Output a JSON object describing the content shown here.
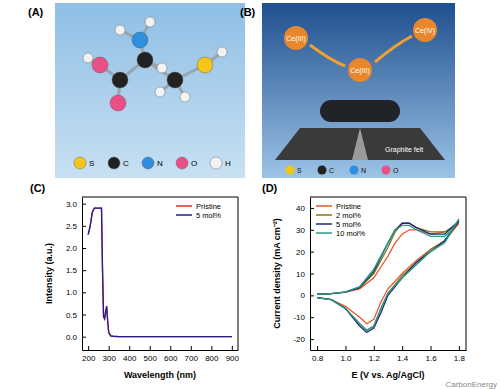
{
  "panels": {
    "A": {
      "label": "(A)",
      "legend": [
        "S",
        "C",
        "N",
        "O",
        "H"
      ]
    },
    "B": {
      "label": "(B)",
      "ions": [
        "Ce(III)",
        "Ce(IV)",
        "Ce(III)"
      ],
      "substrate": "Graphite felt",
      "legend": [
        "S",
        "C",
        "N",
        "O"
      ]
    },
    "C": {
      "label": "(C)"
    },
    "D": {
      "label": "(D)"
    }
  },
  "watermark": "CarbonEnergy",
  "chart_data": [
    {
      "type": "line",
      "x_label": "Wavelength (nm)",
      "y_label": "Intensity (a.u.)",
      "x": [
        200,
        210,
        220,
        230,
        240,
        250,
        260,
        265,
        270,
        275,
        280,
        285,
        290,
        295,
        300,
        310,
        320,
        350,
        400,
        500,
        600,
        700,
        800,
        900
      ],
      "series": [
        {
          "name": "Pristine",
          "color": "#e8281e",
          "values": [
            2.3,
            2.5,
            2.8,
            2.9,
            2.9,
            2.9,
            2.9,
            2.9,
            1.5,
            0.45,
            0.4,
            0.55,
            0.68,
            0.35,
            0.1,
            0.02,
            0.01,
            0,
            0,
            0,
            0,
            0,
            0,
            0
          ]
        },
        {
          "name": "5 mol%",
          "color": "#1f1f8f",
          "values": [
            2.3,
            2.5,
            2.8,
            2.9,
            2.9,
            2.9,
            2.9,
            2.9,
            1.5,
            0.46,
            0.41,
            0.56,
            0.69,
            0.36,
            0.1,
            0.02,
            0.01,
            0,
            0,
            0,
            0,
            0,
            0,
            0
          ]
        }
      ],
      "xlim": [
        170,
        930
      ],
      "xticks": [
        200,
        300,
        400,
        500,
        600,
        700,
        800,
        900
      ],
      "ylim": [
        -0.3,
        3.15
      ],
      "yticks": [
        {
          "value": 0,
          "label": "0.0"
        },
        0.5,
        {
          "value": 1,
          "label": "1.0"
        },
        1.5,
        {
          "value": 2,
          "label": "2.0"
        },
        2.5,
        {
          "value": 3,
          "label": "3.0"
        }
      ],
      "legend": "upper right"
    },
    {
      "type": "line",
      "x_label": "E (V vs. Ag/AgCl)",
      "y_label": "Current density (mA cm⁻²)",
      "x": [
        0.8,
        0.9,
        1.0,
        1.1,
        1.2,
        1.3,
        1.35,
        1.4,
        1.45,
        1.5,
        1.6,
        1.7,
        1.75,
        1.8,
        1.7,
        1.6,
        1.5,
        1.4,
        1.3,
        1.25,
        1.2,
        1.15,
        1.1,
        1.0,
        0.9,
        0.8
      ],
      "series": [
        {
          "name": "Pristine",
          "color": "#e8552a",
          "values": [
            0.5,
            0.8,
            1.5,
            3,
            8,
            18,
            24,
            28,
            30,
            30,
            28,
            29,
            31,
            33,
            25,
            21,
            16,
            10,
            3,
            -3,
            -11,
            -13,
            -10,
            -5,
            -2,
            -1
          ]
        },
        {
          "name": "2 mol%",
          "color": "#7a7a1a",
          "values": [
            0.5,
            0.8,
            1.5,
            3.5,
            10,
            22,
            29,
            33,
            33,
            31,
            29,
            29,
            31,
            34,
            25,
            21,
            15,
            9,
            1,
            -6,
            -14,
            -16,
            -13,
            -6,
            -2,
            -1
          ]
        },
        {
          "name": "5 mol%",
          "color": "#1c2a7a",
          "values": [
            0.5,
            0.8,
            1.5,
            3.5,
            11,
            24,
            30,
            33,
            33,
            31,
            28,
            28,
            31,
            34,
            25,
            20,
            15,
            8,
            0,
            -8,
            -15,
            -17,
            -14,
            -6,
            -2,
            -1
          ]
        },
        {
          "name": "10 mol%",
          "color": "#2a9a8a",
          "values": [
            0.5,
            0.8,
            1.6,
            4,
            12,
            24,
            30,
            32,
            32,
            30,
            27,
            27,
            30,
            35,
            24,
            20,
            14,
            8,
            1,
            -6,
            -14,
            -16,
            -13,
            -6,
            -2,
            -1
          ]
        }
      ],
      "xlim": [
        0.75,
        1.85
      ],
      "xticks": [
        0.8,
        {
          "value": 1,
          "label": "1.0"
        },
        1.2,
        1.4,
        1.6,
        1.8
      ],
      "ylim": [
        -25,
        45
      ],
      "yticks": [
        -20,
        -10,
        0,
        10,
        20,
        30,
        40
      ],
      "legend": "upper left"
    }
  ]
}
